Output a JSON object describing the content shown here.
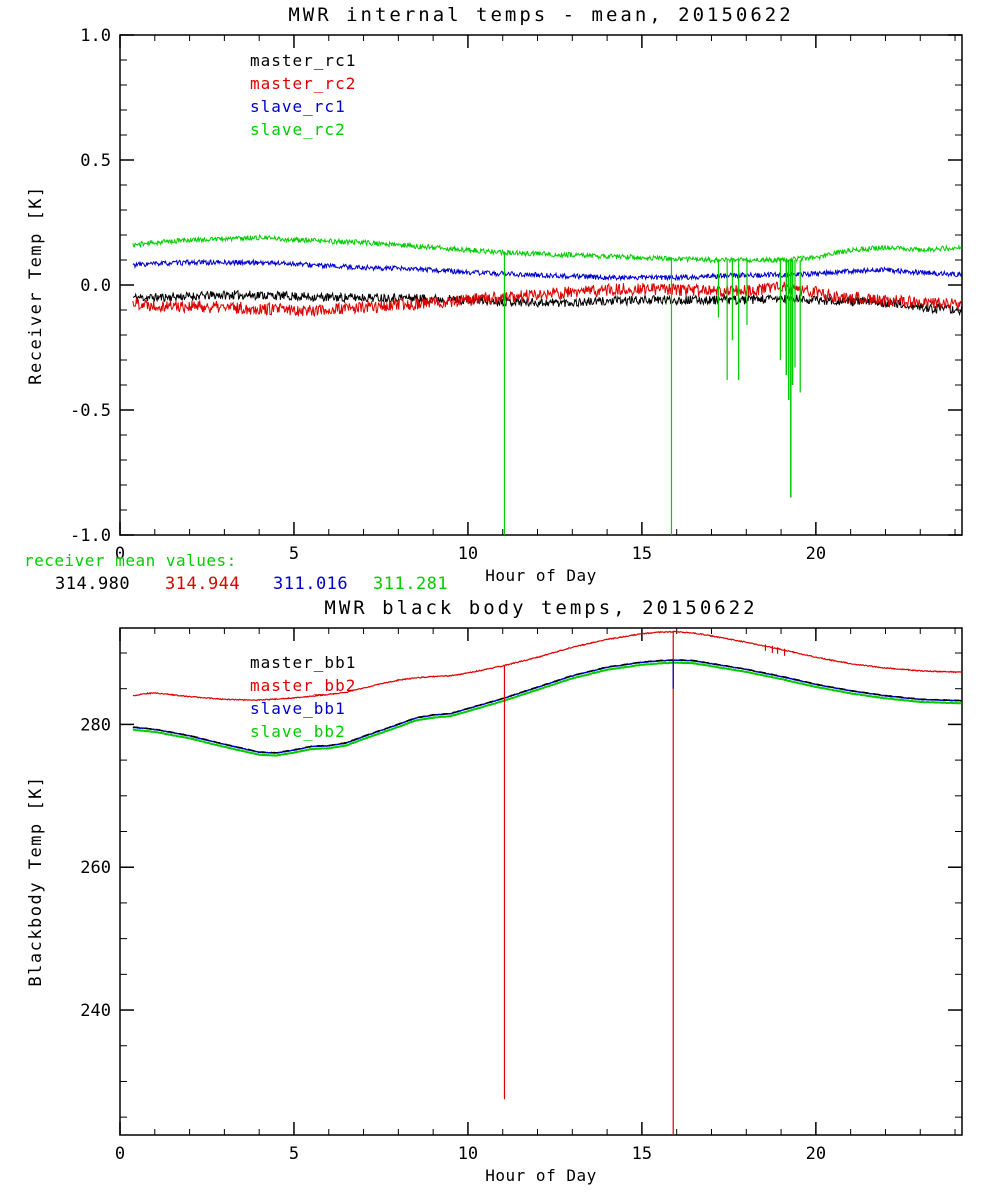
{
  "page": {
    "background": "#ffffff"
  },
  "receiver_means": {
    "label": "receiver mean values:",
    "label_color": "#00cc00",
    "values": [
      {
        "text": "314.980",
        "color": "#000000"
      },
      {
        "text": "314.944",
        "color": "#dd0000"
      },
      {
        "text": "311.016",
        "color": "#0000cc"
      },
      {
        "text": "311.281",
        "color": "#00cc00"
      }
    ]
  },
  "chart_data": [
    {
      "type": "line",
      "title": "MWR internal temps - mean, 20150622",
      "xlabel": "Hour of Day",
      "ylabel": "Receiver Temp [K]",
      "xlim": [
        0,
        24.2
      ],
      "ylim": [
        -1.0,
        1.0
      ],
      "xticks": [
        0,
        5,
        10,
        15,
        20
      ],
      "xtick_labels": [
        "0",
        "5",
        "10",
        "15",
        "20"
      ],
      "x_minor_step": 1,
      "yticks": [
        -1.0,
        -0.5,
        0.0,
        0.5,
        1.0
      ],
      "ytick_labels": [
        "-1.0",
        "-0.5",
        "0.0",
        "0.5",
        "1.0"
      ],
      "y_minor_step": 0.1,
      "grid": false,
      "legend_position": "upper-left-inside",
      "legend": [
        {
          "label": "master_rc1",
          "color": "#000000"
        },
        {
          "label": "master_rc2",
          "color": "#dd0000"
        },
        {
          "label": "slave_rc1",
          "color": "#0000cc"
        },
        {
          "label": "slave_rc2",
          "color": "#00cc00"
        }
      ],
      "series": [
        {
          "name": "master_rc1",
          "color": "#000000",
          "width": 1,
          "noise": 0.018,
          "seed": 11,
          "x": [
            0.37,
            1,
            2,
            3,
            4,
            5,
            6,
            7,
            8,
            9,
            10,
            11,
            12,
            13,
            14,
            15,
            16,
            17,
            18,
            19,
            20,
            21,
            22,
            23,
            24.2
          ],
          "y": [
            -0.05,
            -0.05,
            -0.045,
            -0.04,
            -0.04,
            -0.045,
            -0.05,
            -0.05,
            -0.05,
            -0.055,
            -0.06,
            -0.065,
            -0.07,
            -0.07,
            -0.065,
            -0.06,
            -0.06,
            -0.06,
            -0.06,
            -0.055,
            -0.06,
            -0.065,
            -0.07,
            -0.09,
            -0.1
          ]
        },
        {
          "name": "master_rc2",
          "color": "#dd0000",
          "width": 1,
          "noise": 0.025,
          "seed": 22,
          "x": [
            0.37,
            1,
            2,
            3,
            4,
            5,
            6,
            7,
            8,
            9,
            10,
            11,
            12,
            13,
            14,
            15,
            16,
            17,
            18,
            19,
            20,
            21,
            22,
            23,
            24.2
          ],
          "y": [
            -0.07,
            -0.08,
            -0.085,
            -0.09,
            -0.095,
            -0.1,
            -0.1,
            -0.09,
            -0.08,
            -0.07,
            -0.06,
            -0.05,
            -0.04,
            -0.03,
            -0.02,
            -0.015,
            -0.02,
            -0.025,
            -0.02,
            -0.01,
            -0.03,
            -0.05,
            -0.06,
            -0.07,
            -0.08
          ]
        },
        {
          "name": "slave_rc1",
          "color": "#0000cc",
          "width": 1,
          "noise": 0.01,
          "seed": 33,
          "x": [
            0.37,
            1,
            2,
            3,
            4,
            5,
            6,
            7,
            8,
            9,
            10,
            11,
            12,
            13,
            14,
            15,
            16,
            17,
            18,
            19,
            20,
            21,
            22,
            23,
            24.2
          ],
          "y": [
            0.08,
            0.085,
            0.09,
            0.09,
            0.09,
            0.085,
            0.075,
            0.07,
            0.065,
            0.06,
            0.05,
            0.045,
            0.04,
            0.035,
            0.03,
            0.03,
            0.03,
            0.035,
            0.04,
            0.04,
            0.045,
            0.055,
            0.06,
            0.05,
            0.04
          ]
        },
        {
          "name": "slave_rc2",
          "color": "#00cc00",
          "width": 1,
          "noise": 0.01,
          "seed": 44,
          "x": [
            0.37,
            1,
            2,
            3,
            4,
            5,
            6,
            7,
            8,
            9,
            10,
            11,
            12,
            13,
            14,
            15,
            16,
            17,
            18,
            19,
            20,
            21,
            22,
            23,
            24.2
          ],
          "y": [
            0.16,
            0.17,
            0.18,
            0.185,
            0.19,
            0.18,
            0.175,
            0.17,
            0.16,
            0.15,
            0.14,
            0.13,
            0.125,
            0.12,
            0.115,
            0.11,
            0.105,
            0.1,
            0.1,
            0.1,
            0.11,
            0.14,
            0.15,
            0.14,
            0.15
          ]
        }
      ],
      "spikes": [
        {
          "x": 11.05,
          "from": 0.13,
          "to": -1.0,
          "color": "#00cc00",
          "w": 1.2
        },
        {
          "x": 15.85,
          "from": 0.105,
          "to": -1.0,
          "color": "#00cc00",
          "w": 1.2
        },
        {
          "x": 17.2,
          "from": 0.1,
          "to": -0.13,
          "color": "#00cc00",
          "w": 1.2
        },
        {
          "x": 17.45,
          "from": 0.1,
          "to": -0.38,
          "color": "#00cc00",
          "w": 1.2
        },
        {
          "x": 17.6,
          "from": 0.1,
          "to": -0.22,
          "color": "#00cc00",
          "w": 1.2
        },
        {
          "x": 17.78,
          "from": 0.1,
          "to": -0.38,
          "color": "#00cc00",
          "w": 1.2
        },
        {
          "x": 18.02,
          "from": 0.1,
          "to": -0.16,
          "color": "#00cc00",
          "w": 1.2
        },
        {
          "x": 18.98,
          "from": 0.1,
          "to": -0.3,
          "color": "#00cc00",
          "w": 1.2
        },
        {
          "x": 19.15,
          "from": 0.1,
          "to": -0.36,
          "color": "#00cc00",
          "w": 1.5
        },
        {
          "x": 19.22,
          "from": 0.1,
          "to": -0.46,
          "color": "#00cc00",
          "w": 1.5
        },
        {
          "x": 19.28,
          "from": 0.1,
          "to": -0.85,
          "color": "#00cc00",
          "w": 1.5
        },
        {
          "x": 19.33,
          "from": 0.1,
          "to": -0.4,
          "color": "#00cc00",
          "w": 1.5
        },
        {
          "x": 19.4,
          "from": 0.1,
          "to": -0.33,
          "color": "#00cc00",
          "w": 1.2
        },
        {
          "x": 19.55,
          "from": 0.1,
          "to": -0.43,
          "color": "#00cc00",
          "w": 1.2
        }
      ]
    },
    {
      "type": "line",
      "title": "MWR black body temps, 20150622",
      "xlabel": "Hour of Day",
      "ylabel": "Blackbody Temp [K]",
      "xlim": [
        0,
        24.2
      ],
      "ylim": [
        222.5,
        293.5
      ],
      "xticks": [
        0,
        5,
        10,
        15,
        20
      ],
      "xtick_labels": [
        "0",
        "5",
        "10",
        "15",
        "20"
      ],
      "x_minor_step": 1,
      "yticks": [
        240,
        260,
        280
      ],
      "ytick_labels": [
        "240",
        "260",
        "280"
      ],
      "y_minor_step": 5,
      "grid": false,
      "legend_position": "upper-left-inside",
      "legend": [
        {
          "label": "master_bb1",
          "color": "#000000"
        },
        {
          "label": "master_bb2",
          "color": "#dd0000"
        },
        {
          "label": "slave_bb1",
          "color": "#0000cc"
        },
        {
          "label": "slave_bb2",
          "color": "#00cc00"
        }
      ],
      "series": [
        {
          "name": "slave_bb2",
          "color": "#00cc00",
          "width": 2,
          "noise": 0.03,
          "seed": 55,
          "x": [
            0.37,
            1,
            2,
            3,
            4,
            4.5,
            5,
            5.5,
            6,
            6.5,
            7,
            8,
            8.5,
            9,
            9.5,
            10,
            11,
            12,
            13,
            14,
            15,
            15.5,
            16,
            16.5,
            17,
            18,
            19,
            20,
            21,
            22,
            23,
            24.2
          ],
          "y": [
            279.25,
            278.95,
            278.05,
            276.85,
            275.75,
            275.65,
            276.05,
            276.55,
            276.65,
            277.05,
            277.95,
            279.65,
            280.55,
            280.95,
            281.15,
            281.85,
            283.25,
            284.85,
            286.45,
            287.65,
            288.35,
            288.55,
            288.65,
            288.55,
            288.15,
            287.35,
            286.35,
            285.25,
            284.35,
            283.65,
            283.15,
            282.95
          ]
        },
        {
          "name": "slave_bb1",
          "color": "#0000cc",
          "width": 1.5,
          "noise": 0.03,
          "seed": 66,
          "x": [
            0.37,
            1,
            2,
            3,
            4,
            4.5,
            5,
            5.5,
            6,
            6.5,
            7,
            8,
            8.5,
            9,
            9.5,
            10,
            11,
            12,
            13,
            14,
            15,
            15.5,
            16,
            16.5,
            17,
            18,
            19,
            20,
            21,
            22,
            23,
            24.2
          ],
          "y": [
            279.6,
            279.3,
            278.4,
            277.2,
            276.1,
            276.0,
            276.4,
            276.9,
            277.0,
            277.4,
            278.3,
            280.0,
            280.9,
            281.3,
            281.5,
            282.2,
            283.6,
            285.2,
            286.8,
            288.0,
            288.7,
            288.9,
            289.0,
            288.9,
            288.5,
            287.7,
            286.7,
            285.6,
            284.7,
            284.0,
            283.5,
            283.3
          ]
        },
        {
          "name": "master_bb1",
          "color": "#000000",
          "width": 1.3,
          "noise": 0.03,
          "seed": 77,
          "dash": [
            7,
            5
          ],
          "x": [
            0.37,
            1,
            2,
            3,
            4,
            4.5,
            5,
            5.5,
            6,
            6.5,
            7,
            8,
            8.5,
            9,
            9.5,
            10,
            11,
            12,
            13,
            14,
            15,
            15.5,
            16,
            16.5,
            17,
            18,
            19,
            20,
            21,
            22,
            23,
            24.2
          ],
          "y": [
            279.65,
            279.35,
            278.45,
            277.25,
            276.15,
            276.05,
            276.45,
            276.95,
            277.05,
            277.45,
            278.35,
            280.05,
            280.95,
            281.35,
            281.55,
            282.25,
            283.65,
            285.25,
            286.85,
            288.05,
            288.75,
            288.95,
            289.05,
            288.95,
            288.55,
            287.75,
            286.75,
            285.65,
            284.75,
            284.05,
            283.55,
            283.35
          ]
        },
        {
          "name": "master_bb2",
          "color": "#dd0000",
          "width": 1.2,
          "noise": 0.07,
          "seed": 88,
          "x": [
            0.37,
            0.7,
            1,
            2,
            3,
            4,
            5,
            6,
            6.5,
            7,
            7.5,
            8,
            8.5,
            9,
            9.5,
            10,
            11,
            12,
            13,
            14,
            15,
            15.5,
            16,
            16.5,
            17,
            18,
            18.5,
            19,
            20,
            21,
            22,
            23,
            24.2
          ],
          "y": [
            284.0,
            284.3,
            284.4,
            283.9,
            283.5,
            283.4,
            283.7,
            284.2,
            284.5,
            285.1,
            285.7,
            286.2,
            286.5,
            286.7,
            286.8,
            287.2,
            288.2,
            289.4,
            290.8,
            291.9,
            292.7,
            292.9,
            293.0,
            292.8,
            292.4,
            291.5,
            291.0,
            290.5,
            289.4,
            288.5,
            287.9,
            287.5,
            287.3
          ]
        }
      ],
      "spikes": [
        {
          "x": 11.05,
          "from": 288.2,
          "to": 227.5,
          "color": "#dd0000",
          "w": 1.2
        },
        {
          "x": 15.9,
          "from": 293.0,
          "to": 222.5,
          "color": "#dd0000",
          "w": 1.2
        },
        {
          "x": 15.9,
          "from": 289.0,
          "to": 285.0,
          "color": "#0000cc",
          "w": 1.2
        },
        {
          "x": 18.55,
          "from": 291.2,
          "to": 290.3,
          "color": "#dd0000",
          "w": 1.2
        },
        {
          "x": 18.75,
          "from": 291.0,
          "to": 290.0,
          "color": "#dd0000",
          "w": 1.2
        },
        {
          "x": 18.9,
          "from": 290.8,
          "to": 289.9,
          "color": "#dd0000",
          "w": 1.2
        },
        {
          "x": 19.1,
          "from": 290.6,
          "to": 289.6,
          "color": "#dd0000",
          "w": 1.2
        }
      ]
    }
  ]
}
